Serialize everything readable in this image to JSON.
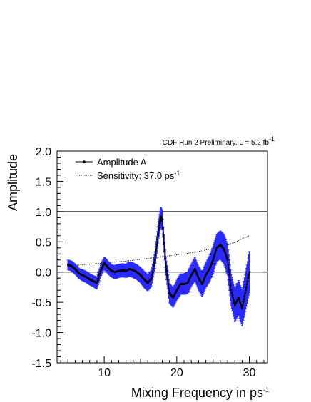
{
  "chart_data": {
    "type": "line",
    "header": {
      "text": "CDF Run 2 Preliminary, L = 5.2 fb",
      "sup": "-1"
    },
    "xlabel": {
      "text": "Mixing Frequency in ps",
      "sup": "-1"
    },
    "ylabel": "Amplitude",
    "xlim": [
      3.5,
      32.5
    ],
    "ylim": [
      -1.5,
      2.0
    ],
    "xticks": [
      10,
      20,
      30
    ],
    "yticks": [
      -1.5,
      -1.0,
      -0.5,
      0.0,
      0.5,
      1.0,
      1.5,
      2.0
    ],
    "ytick_labels": [
      "-1.5",
      "-1.0",
      "-0.5",
      "0.0",
      "0.5",
      "1.0",
      "1.5",
      "2.0"
    ],
    "reference_lines": [
      0.0,
      1.0
    ],
    "legend": [
      {
        "label": "Amplitude A",
        "style": "marker-line"
      },
      {
        "label": "Sensitivity: 37.0 ps",
        "sup": "-1",
        "style": "dotted"
      }
    ],
    "colors": {
      "error_band": "#2a2aff",
      "marker": "#000000",
      "sensitivity": "#000000"
    },
    "series": [
      {
        "name": "Amplitude A",
        "x": [
          5.0,
          5.5,
          6.0,
          6.5,
          7.0,
          7.5,
          8.0,
          8.5,
          9.0,
          9.5,
          10.0,
          10.5,
          11.0,
          11.5,
          12.0,
          12.5,
          13.0,
          13.5,
          14.0,
          14.5,
          15.0,
          15.5,
          16.0,
          16.5,
          17.0,
          17.5,
          17.8,
          18.0,
          18.5,
          19.0,
          19.5,
          20.0,
          20.5,
          21.0,
          21.5,
          22.0,
          22.5,
          23.0,
          23.5,
          24.0,
          24.5,
          25.0,
          25.5,
          26.0,
          26.5,
          27.0,
          27.5,
          28.0,
          28.5,
          29.0,
          29.5,
          30.0
        ],
        "values": [
          0.12,
          0.1,
          0.05,
          -0.02,
          -0.05,
          -0.08,
          -0.12,
          -0.15,
          -0.18,
          0.02,
          0.15,
          0.08,
          0.02,
          0.0,
          0.02,
          0.03,
          0.02,
          0.05,
          0.03,
          0.0,
          -0.05,
          -0.12,
          -0.18,
          -0.1,
          0.2,
          0.7,
          0.92,
          0.85,
          0.1,
          -0.35,
          -0.42,
          -0.3,
          -0.2,
          -0.2,
          -0.18,
          -0.05,
          0.05,
          -0.1,
          -0.2,
          -0.05,
          0.05,
          0.2,
          0.4,
          0.45,
          0.38,
          0.2,
          -0.3,
          -0.55,
          -0.42,
          -0.6,
          -0.3,
          0.0
        ],
        "errors": [
          0.08,
          0.08,
          0.08,
          0.08,
          0.09,
          0.09,
          0.09,
          0.09,
          0.1,
          0.1,
          0.1,
          0.1,
          0.1,
          0.11,
          0.11,
          0.11,
          0.11,
          0.12,
          0.12,
          0.12,
          0.12,
          0.13,
          0.13,
          0.13,
          0.14,
          0.14,
          0.15,
          0.15,
          0.15,
          0.16,
          0.16,
          0.16,
          0.17,
          0.17,
          0.18,
          0.18,
          0.19,
          0.19,
          0.2,
          0.2,
          0.21,
          0.22,
          0.22,
          0.23,
          0.24,
          0.25,
          0.26,
          0.27,
          0.28,
          0.29,
          0.31,
          0.34
        ]
      },
      {
        "name": "Sensitivity: 37.0 ps-1",
        "x": [
          5,
          7,
          9,
          11,
          13,
          15,
          17,
          19,
          21,
          23,
          25,
          27,
          28,
          29,
          30
        ],
        "values": [
          0.1,
          0.12,
          0.14,
          0.16,
          0.18,
          0.21,
          0.24,
          0.27,
          0.3,
          0.34,
          0.39,
          0.45,
          0.49,
          0.55,
          0.6
        ]
      }
    ]
  }
}
